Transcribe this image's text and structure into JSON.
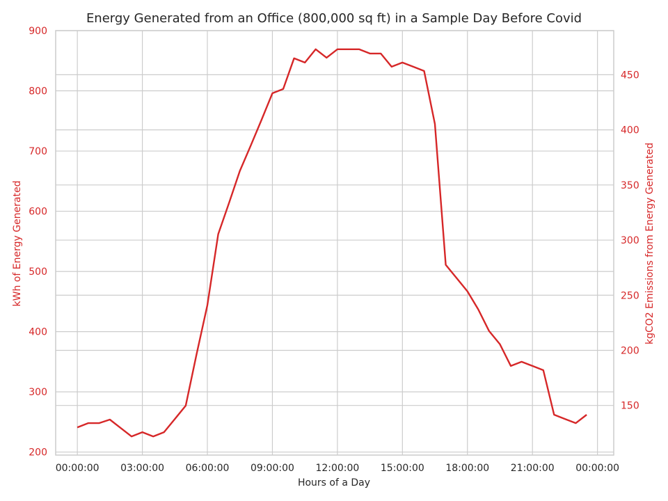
{
  "chart_data": {
    "type": "line",
    "title": "Energy Generated from an Office (800,000 sq ft) in a Sample Day Before Covid",
    "xlabel": "Hours of a Day",
    "ylabel_left": "kWh of Energy Generated",
    "ylabel_right": "kgCO2 Emissions from Energy Generated",
    "x_unit": "hours",
    "xlim": [
      -1.0,
      24.75
    ],
    "ylim_left": [
      195,
      900
    ],
    "ylim_right": [
      105,
      490
    ],
    "x_ticks": [
      0,
      3,
      6,
      9,
      12,
      15,
      18,
      21,
      24
    ],
    "x_tick_labels": [
      "00:00:00",
      "03:00:00",
      "06:00:00",
      "09:00:00",
      "12:00:00",
      "15:00:00",
      "18:00:00",
      "21:00:00",
      "00:00:00"
    ],
    "y_ticks_left": [
      200,
      300,
      400,
      500,
      600,
      700,
      800,
      900
    ],
    "y_ticks_right": [
      150,
      200,
      250,
      300,
      350,
      400,
      450
    ],
    "grid": true,
    "series": [
      {
        "name": "kWh of Energy Generated",
        "color": "#d62728",
        "x": [
          0,
          0.5,
          1,
          1.5,
          2,
          2.5,
          3,
          3.5,
          4,
          4.5,
          5,
          5.5,
          6,
          6.5,
          7,
          7.5,
          8,
          8.5,
          9,
          9.5,
          10,
          10.5,
          11,
          11.5,
          12,
          12.5,
          13,
          13.5,
          14,
          14.5,
          15,
          15.5,
          16,
          16.5,
          17,
          17.5,
          18,
          18.5,
          19,
          19.5,
          20,
          20.5,
          21,
          21.5,
          22,
          22.5,
          23,
          23.5
        ],
        "values": [
          241,
          248,
          248,
          254,
          240,
          226,
          233,
          226,
          233,
          255,
          277,
          362,
          444,
          562,
          614,
          667,
          709,
          752,
          796,
          803,
          854,
          847,
          869,
          855,
          869,
          869,
          869,
          862,
          862,
          840,
          847,
          840,
          833,
          745,
          511,
          489,
          467,
          437,
          401,
          379,
          343,
          350,
          343,
          336,
          262,
          255,
          248,
          262
        ]
      }
    ],
    "secondary_series": {
      "name": "kgCO2 Emissions from Energy Generated",
      "note": "right axis shares the same line",
      "color": "#d62728"
    },
    "axis_color": "#d62728"
  }
}
